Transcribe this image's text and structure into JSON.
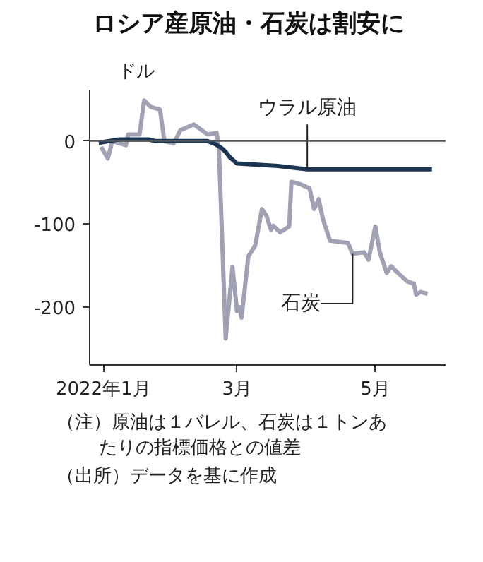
{
  "chart_data": {
    "type": "line",
    "title": "ロシア産原油・石炭は割安に",
    "ylabel": "ドル",
    "xlim": [
      "2021-12-26",
      "2022-06-01"
    ],
    "xticks": [
      {
        "value": "2022-01-01",
        "label": "2022年1月"
      },
      {
        "value": "2022-03-01",
        "label": "3月"
      },
      {
        "value": "2022-05-01",
        "label": "5月"
      }
    ],
    "ylim": [
      -270,
      62
    ],
    "yticks": [
      0,
      -100,
      -200
    ],
    "grid": false,
    "line_style": "solid",
    "marker": "none",
    "ref_lines": [
      {
        "axis": "y",
        "value": 0,
        "color": "#555555"
      }
    ],
    "series": [
      {
        "name": "石炭",
        "color": "#a0a2b4",
        "x": [
          "2021-12-31",
          "2022-01-03",
          "2022-01-05",
          "2022-01-11",
          "2022-01-12",
          "2022-01-17",
          "2022-01-19",
          "2022-01-22",
          "2022-01-26",
          "2022-01-28",
          "2022-02-01",
          "2022-02-04",
          "2022-02-10",
          "2022-02-16",
          "2022-02-20",
          "2022-02-21",
          "2022-02-24",
          "2022-02-27",
          "2022-03-01",
          "2022-03-02",
          "2022-03-03",
          "2022-03-06",
          "2022-03-09",
          "2022-03-12",
          "2022-03-14",
          "2022-03-16",
          "2022-03-17",
          "2022-03-20",
          "2022-03-24",
          "2022-03-25",
          "2022-03-29",
          "2022-04-02",
          "2022-04-04",
          "2022-04-06",
          "2022-04-08",
          "2022-04-11",
          "2022-04-19",
          "2022-04-21",
          "2022-04-26",
          "2022-04-28",
          "2022-05-01",
          "2022-05-03",
          "2022-05-06",
          "2022-05-08",
          "2022-05-11",
          "2022-05-15",
          "2022-05-18",
          "2022-05-19",
          "2022-05-21",
          "2022-05-24"
        ],
        "values": [
          -7,
          -21,
          0,
          -5,
          8,
          8,
          49,
          41,
          38,
          0,
          -3,
          13,
          20,
          8,
          10,
          -8,
          -238,
          -152,
          -205,
          -200,
          -213,
          -139,
          -126,
          -82,
          -90,
          -107,
          -102,
          -110,
          -103,
          -49,
          -52,
          -57,
          -82,
          -70,
          -95,
          -120,
          -123,
          -136,
          -134,
          -143,
          -103,
          -134,
          -159,
          -151,
          -159,
          -169,
          -172,
          -185,
          -182,
          -184
        ]
      },
      {
        "name": "ウラル原油",
        "color": "#1c3553",
        "x": [
          "2021-12-30",
          "2022-01-08",
          "2022-01-21",
          "2022-01-24",
          "2022-02-16",
          "2022-02-19",
          "2022-02-22",
          "2022-02-24",
          "2022-02-26",
          "2022-03-01",
          "2022-03-19",
          "2022-04-01",
          "2022-05-26"
        ],
        "values": [
          -2,
          2,
          2,
          0,
          0,
          -3,
          -8,
          -13,
          -20,
          -27,
          -30,
          -34,
          -34
        ]
      }
    ],
    "annotations": [
      "（注）原油は１バレル、石炭は１トンあたりの指標価格との値差",
      "（出所）データを基に作成"
    ]
  }
}
